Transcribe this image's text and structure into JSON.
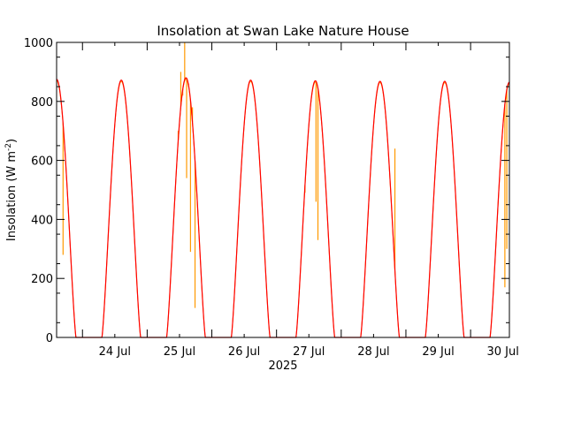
{
  "chart_data": {
    "type": "line",
    "title": "Insolation at Swan Lake Nature House",
    "ylabel": "Insolation (W m",
    "ylabel_sup": "-2",
    "ylabel_close": ")",
    "xlabel": "2025",
    "ylim": [
      0,
      1000
    ],
    "xlim": [
      23.6,
      30.6
    ],
    "yticks": [
      0,
      200,
      400,
      600,
      800,
      1000
    ],
    "ytick_labels": [
      "0",
      "200",
      "400",
      "600",
      "800",
      "1000"
    ],
    "xticks": [
      24,
      25,
      26,
      27,
      28,
      29,
      30
    ],
    "xtick_labels": [
      "24 Jul",
      "25 Jul",
      "26 Jul",
      "27 Jul",
      "28 Jul",
      "29 Jul",
      "30 Jul"
    ],
    "x_units": "day of July 2025",
    "series": [
      {
        "role": "clear-sky model",
        "color": "#ff0000",
        "peaks": [
          {
            "day": 23.6,
            "peak": 875
          },
          {
            "day": 24.6,
            "peak": 872
          },
          {
            "day": 25.6,
            "peak": 880
          },
          {
            "day": 26.6,
            "peak": 872
          },
          {
            "day": 27.6,
            "peak": 870
          },
          {
            "day": 28.6,
            "peak": 868
          },
          {
            "day": 29.6,
            "peak": 868
          },
          {
            "day": 30.6,
            "peak": 865
          }
        ],
        "half_daylight_days": 0.3
      },
      {
        "role": "measured",
        "color": "#ff9900",
        "spikes": [
          {
            "day": 23.7,
            "value": 280
          },
          {
            "day": 25.48,
            "value": 700
          },
          {
            "day": 25.52,
            "value": 900
          },
          {
            "day": 25.55,
            "value": 820
          },
          {
            "day": 25.58,
            "value": 1000
          },
          {
            "day": 25.61,
            "value": 540
          },
          {
            "day": 25.64,
            "value": 860
          },
          {
            "day": 25.67,
            "value": 290
          },
          {
            "day": 25.7,
            "value": 780
          },
          {
            "day": 25.74,
            "value": 100
          },
          {
            "day": 27.44,
            "value": 490
          },
          {
            "day": 27.64,
            "value": 330
          },
          {
            "day": 27.61,
            "value": 460
          },
          {
            "day": 28.83,
            "value": 640
          },
          {
            "day": 30.53,
            "value": 170
          },
          {
            "day": 30.56,
            "value": 300
          }
        ]
      }
    ]
  }
}
